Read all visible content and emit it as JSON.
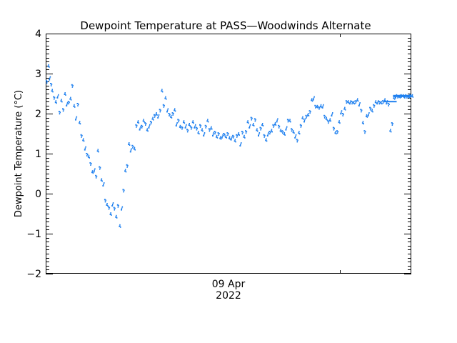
{
  "chart_data": {
    "type": "scatter",
    "title": "Dewpoint Temperature at PASS—Woodwinds Alternate",
    "xlabel": "",
    "ylabel": "Dewpoint Temperature (°C)",
    "ylim": [
      -2,
      4
    ],
    "yticks": [
      "4",
      "3",
      "2",
      "1",
      "0",
      "−1",
      "−2"
    ],
    "ytick_values": [
      4,
      3,
      2,
      1,
      0,
      -1,
      -2
    ],
    "y_minor_per_major": 10,
    "x_tick_label_line1": "09 Apr",
    "x_tick_label_line2": "2022",
    "x_major_tick_fraction": 0.805,
    "x_label_fraction": 0.5,
    "grid": false,
    "legend": null,
    "series": [
      {
        "name": "Dewpoint Temperature",
        "color": "#1f80ef",
        "x": [
          0,
          0.005,
          0.008,
          0.012,
          0.015,
          0.02,
          0.025,
          0.03,
          0.035,
          0.04,
          0.045,
          0.05,
          0.055,
          0.06,
          0.065,
          0.07,
          0.075,
          0.08,
          0.085,
          0.09,
          0.095,
          0.1,
          0.105,
          0.11,
          0.115,
          0.12,
          0.125,
          0.13,
          0.135,
          0.14,
          0.145,
          0.15,
          0.155,
          0.16,
          0.165,
          0.17,
          0.175,
          0.18,
          0.185,
          0.19,
          0.195,
          0.2,
          0.205,
          0.21,
          0.215,
          0.22,
          0.225,
          0.23,
          0.235,
          0.24,
          0.245,
          0.25,
          0.255,
          0.26,
          0.265,
          0.27,
          0.275,
          0.28,
          0.285,
          0.29,
          0.295,
          0.3,
          0.305,
          0.31,
          0.315,
          0.32,
          0.325,
          0.33,
          0.335,
          0.34,
          0.345,
          0.35,
          0.355,
          0.36,
          0.365,
          0.37,
          0.375,
          0.38,
          0.385,
          0.39,
          0.395,
          0.4,
          0.405,
          0.41,
          0.415,
          0.42,
          0.425,
          0.43,
          0.435,
          0.44,
          0.445,
          0.45,
          0.455,
          0.46,
          0.465,
          0.47,
          0.475,
          0.48,
          0.485,
          0.49,
          0.495,
          0.5,
          0.505,
          0.51,
          0.515,
          0.52,
          0.525,
          0.53,
          0.535,
          0.54,
          0.545,
          0.55,
          0.555,
          0.56,
          0.565,
          0.57,
          0.575,
          0.58,
          0.585,
          0.59,
          0.595,
          0.6,
          0.605,
          0.61,
          0.615,
          0.62,
          0.625,
          0.63,
          0.635,
          0.64,
          0.645,
          0.65,
          0.655,
          0.66,
          0.665,
          0.67,
          0.675,
          0.68,
          0.685,
          0.69,
          0.695,
          0.7,
          0.705,
          0.71,
          0.715,
          0.72,
          0.725,
          0.73,
          0.735,
          0.74,
          0.745,
          0.75,
          0.755,
          0.76,
          0.765,
          0.77,
          0.775,
          0.78,
          0.785,
          0.79,
          0.795,
          0.8,
          0.805,
          0.81,
          0.815,
          0.82,
          0.825,
          0.83,
          0.835,
          0.84,
          0.845,
          0.85,
          0.855,
          0.86,
          0.865,
          0.87,
          0.875,
          0.88,
          0.885,
          0.89,
          0.895,
          0.9,
          0.905,
          0.91,
          0.915,
          0.92,
          0.925,
          0.93,
          0.935,
          0.94,
          0.945,
          0.95,
          0.955,
          0.96,
          0.965,
          0.97,
          0.975,
          0.98,
          0.985,
          0.99,
          0.995,
          1.0
        ],
        "values": [
          2.8,
          3.2,
          2.9,
          2.75,
          2.6,
          2.4,
          2.3,
          2.45,
          2.05,
          2.35,
          2.1,
          2.5,
          2.25,
          2.3,
          2.4,
          2.7,
          2.2,
          1.9,
          2.25,
          1.8,
          1.45,
          1.35,
          1.15,
          1.0,
          0.95,
          0.75,
          0.55,
          0.6,
          0.45,
          1.1,
          0.65,
          0.35,
          0.25,
          -0.15,
          -0.25,
          -0.35,
          -0.5,
          -0.25,
          -0.35,
          -0.55,
          -0.3,
          -0.8,
          -0.35,
          0.1,
          0.6,
          0.7,
          1.25,
          1.1,
          1.2,
          1.15,
          1.7,
          1.8,
          1.65,
          1.7,
          1.85,
          1.75,
          1.6,
          1.7,
          1.8,
          1.9,
          1.95,
          2.0,
          1.95,
          2.1,
          2.6,
          2.2,
          2.4,
          2.1,
          2.0,
          1.95,
          2.0,
          2.1,
          1.75,
          1.85,
          1.7,
          1.65,
          1.8,
          1.7,
          1.6,
          1.75,
          1.65,
          1.8,
          1.7,
          1.65,
          1.55,
          1.7,
          1.6,
          1.5,
          1.7,
          1.85,
          1.6,
          1.65,
          1.5,
          1.55,
          1.45,
          1.5,
          1.4,
          1.45,
          1.5,
          1.45,
          1.5,
          1.4,
          1.4,
          1.45,
          1.35,
          1.45,
          1.5,
          1.25,
          1.55,
          1.45,
          1.55,
          1.8,
          1.7,
          1.9,
          1.75,
          1.85,
          1.6,
          1.5,
          1.65,
          1.75,
          1.45,
          1.35,
          1.5,
          1.55,
          1.6,
          1.7,
          1.75,
          1.85,
          1.7,
          1.6,
          1.55,
          1.5,
          1.65,
          1.85,
          1.85,
          1.6,
          1.55,
          1.45,
          1.35,
          1.55,
          1.7,
          1.9,
          1.85,
          1.95,
          2.0,
          2.05,
          2.35,
          2.4,
          2.2,
          2.2,
          2.15,
          2.2,
          2.2,
          1.95,
          1.9,
          1.8,
          1.85,
          2.0,
          1.65,
          1.55,
          1.55,
          1.8,
          2.05,
          2.0,
          2.15,
          2.3,
          2.3,
          2.3,
          2.3,
          2.3,
          2.3,
          2.35,
          2.25,
          2.1,
          1.8,
          1.55,
          1.95,
          2.0,
          2.15,
          2.1,
          2.2,
          2.3,
          2.3,
          2.3,
          2.3,
          2.3,
          2.35,
          2.3,
          2.25,
          1.6,
          1.75,
          2.4,
          2.45,
          2.45,
          2.45,
          2.45,
          2.45,
          2.45,
          2.45,
          2.45,
          2.45,
          2.45
        ]
      }
    ]
  }
}
